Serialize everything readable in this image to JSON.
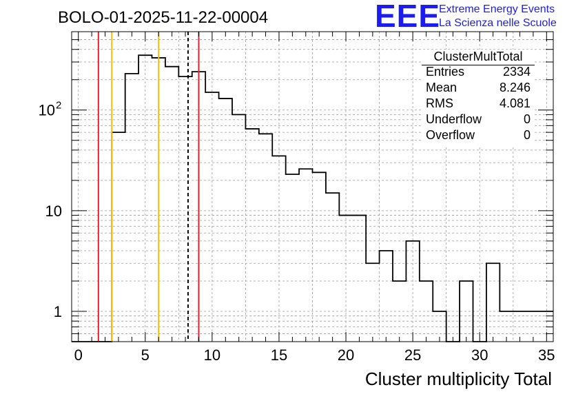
{
  "title": "BOLO-01-2025-11-22-00004",
  "logo": {
    "mark": "EEE",
    "line1": "Extreme Energy Events",
    "line2": "La Scienza nelle Scuole",
    "color": "#1c1cf0"
  },
  "stats": {
    "name": "ClusterMultTotal",
    "rows": [
      {
        "key": "Entries",
        "value": "2334"
      },
      {
        "key": "Mean",
        "value": "8.246"
      },
      {
        "key": "RMS",
        "value": "4.081"
      },
      {
        "key": "Underflow",
        "value": "0"
      },
      {
        "key": "Overflow",
        "value": "0"
      }
    ]
  },
  "chart_data": {
    "type": "histogram",
    "xlabel": "Cluster multiplicity Total",
    "ylabel": "",
    "xlim": [
      -0.5,
      35.5
    ],
    "ylim": [
      0.5,
      600
    ],
    "yscale": "log",
    "grid": true,
    "x_ticks": [
      0,
      5,
      10,
      15,
      20,
      25,
      30,
      35
    ],
    "y_ticks": [
      {
        "value": 1,
        "label": "1"
      },
      {
        "value": 10,
        "label": "10"
      },
      {
        "value": 100,
        "label": "10",
        "exponent": "2"
      }
    ],
    "bin_width": 1,
    "bin_centers": [
      0,
      1,
      2,
      3,
      4,
      5,
      6,
      7,
      8,
      9,
      10,
      11,
      12,
      13,
      14,
      15,
      16,
      17,
      18,
      19,
      20,
      21,
      22,
      23,
      24,
      25,
      26,
      27,
      28,
      29,
      30,
      31,
      32,
      33,
      34,
      35
    ],
    "values": [
      0,
      0,
      0,
      60,
      230,
      350,
      330,
      270,
      215,
      240,
      150,
      130,
      90,
      65,
      58,
      35,
      23,
      26,
      24,
      15,
      9,
      9,
      3,
      4,
      2,
      5,
      2,
      1,
      0,
      2,
      0,
      3,
      1,
      1,
      1,
      1
    ],
    "vertical_lines": [
      {
        "x": 1.5,
        "color": "#e8202a",
        "style": "solid"
      },
      {
        "x": 2.5,
        "color": "#f2c200",
        "style": "solid"
      },
      {
        "x": 6.0,
        "color": "#f2c200",
        "style": "solid"
      },
      {
        "x": 8.2,
        "color": "#000000",
        "style": "dashed"
      },
      {
        "x": 9.0,
        "color": "#e8202a",
        "style": "solid"
      }
    ]
  }
}
